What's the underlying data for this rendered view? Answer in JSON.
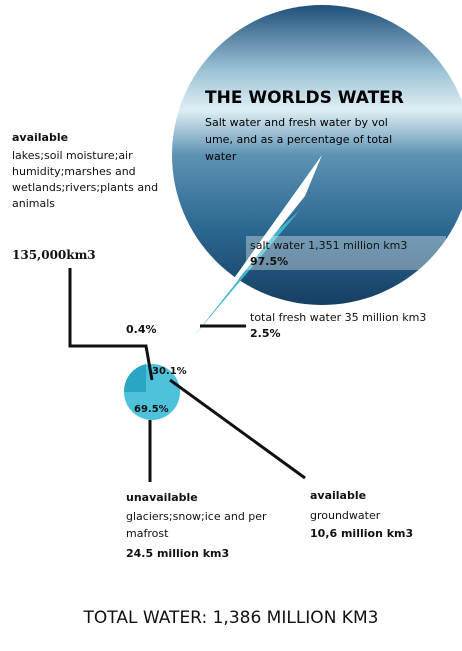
{
  "header": {
    "title": "THE WORLDS WATER",
    "subtitle": "Salt water and fresh water by vol ume, and as a percentage of total water"
  },
  "salt_water": {
    "label": "salt water 1,351 million km3",
    "percent": "97.5%"
  },
  "fresh_water": {
    "label": "total fresh water 35 million km3",
    "percent": "2.5%"
  },
  "surface_water": {
    "heading": "available",
    "description": "lakes;soil moisture;air humidity;marshes and wetlands;rivers;plants and animals",
    "amount": "135,000km3",
    "percent": "0.4%"
  },
  "groundwater": {
    "percent": "30.1%",
    "heading": "available",
    "description": "groundwater",
    "amount": "10,6 million km3"
  },
  "ice": {
    "percent": "69.5%",
    "heading": "unavailable",
    "description": "glaciers;snow;ice and per mafrost",
    "amount": "24.5 million km3"
  },
  "footer": {
    "total": "TOTAL WATER: 1,386 MILLION KM3"
  }
}
